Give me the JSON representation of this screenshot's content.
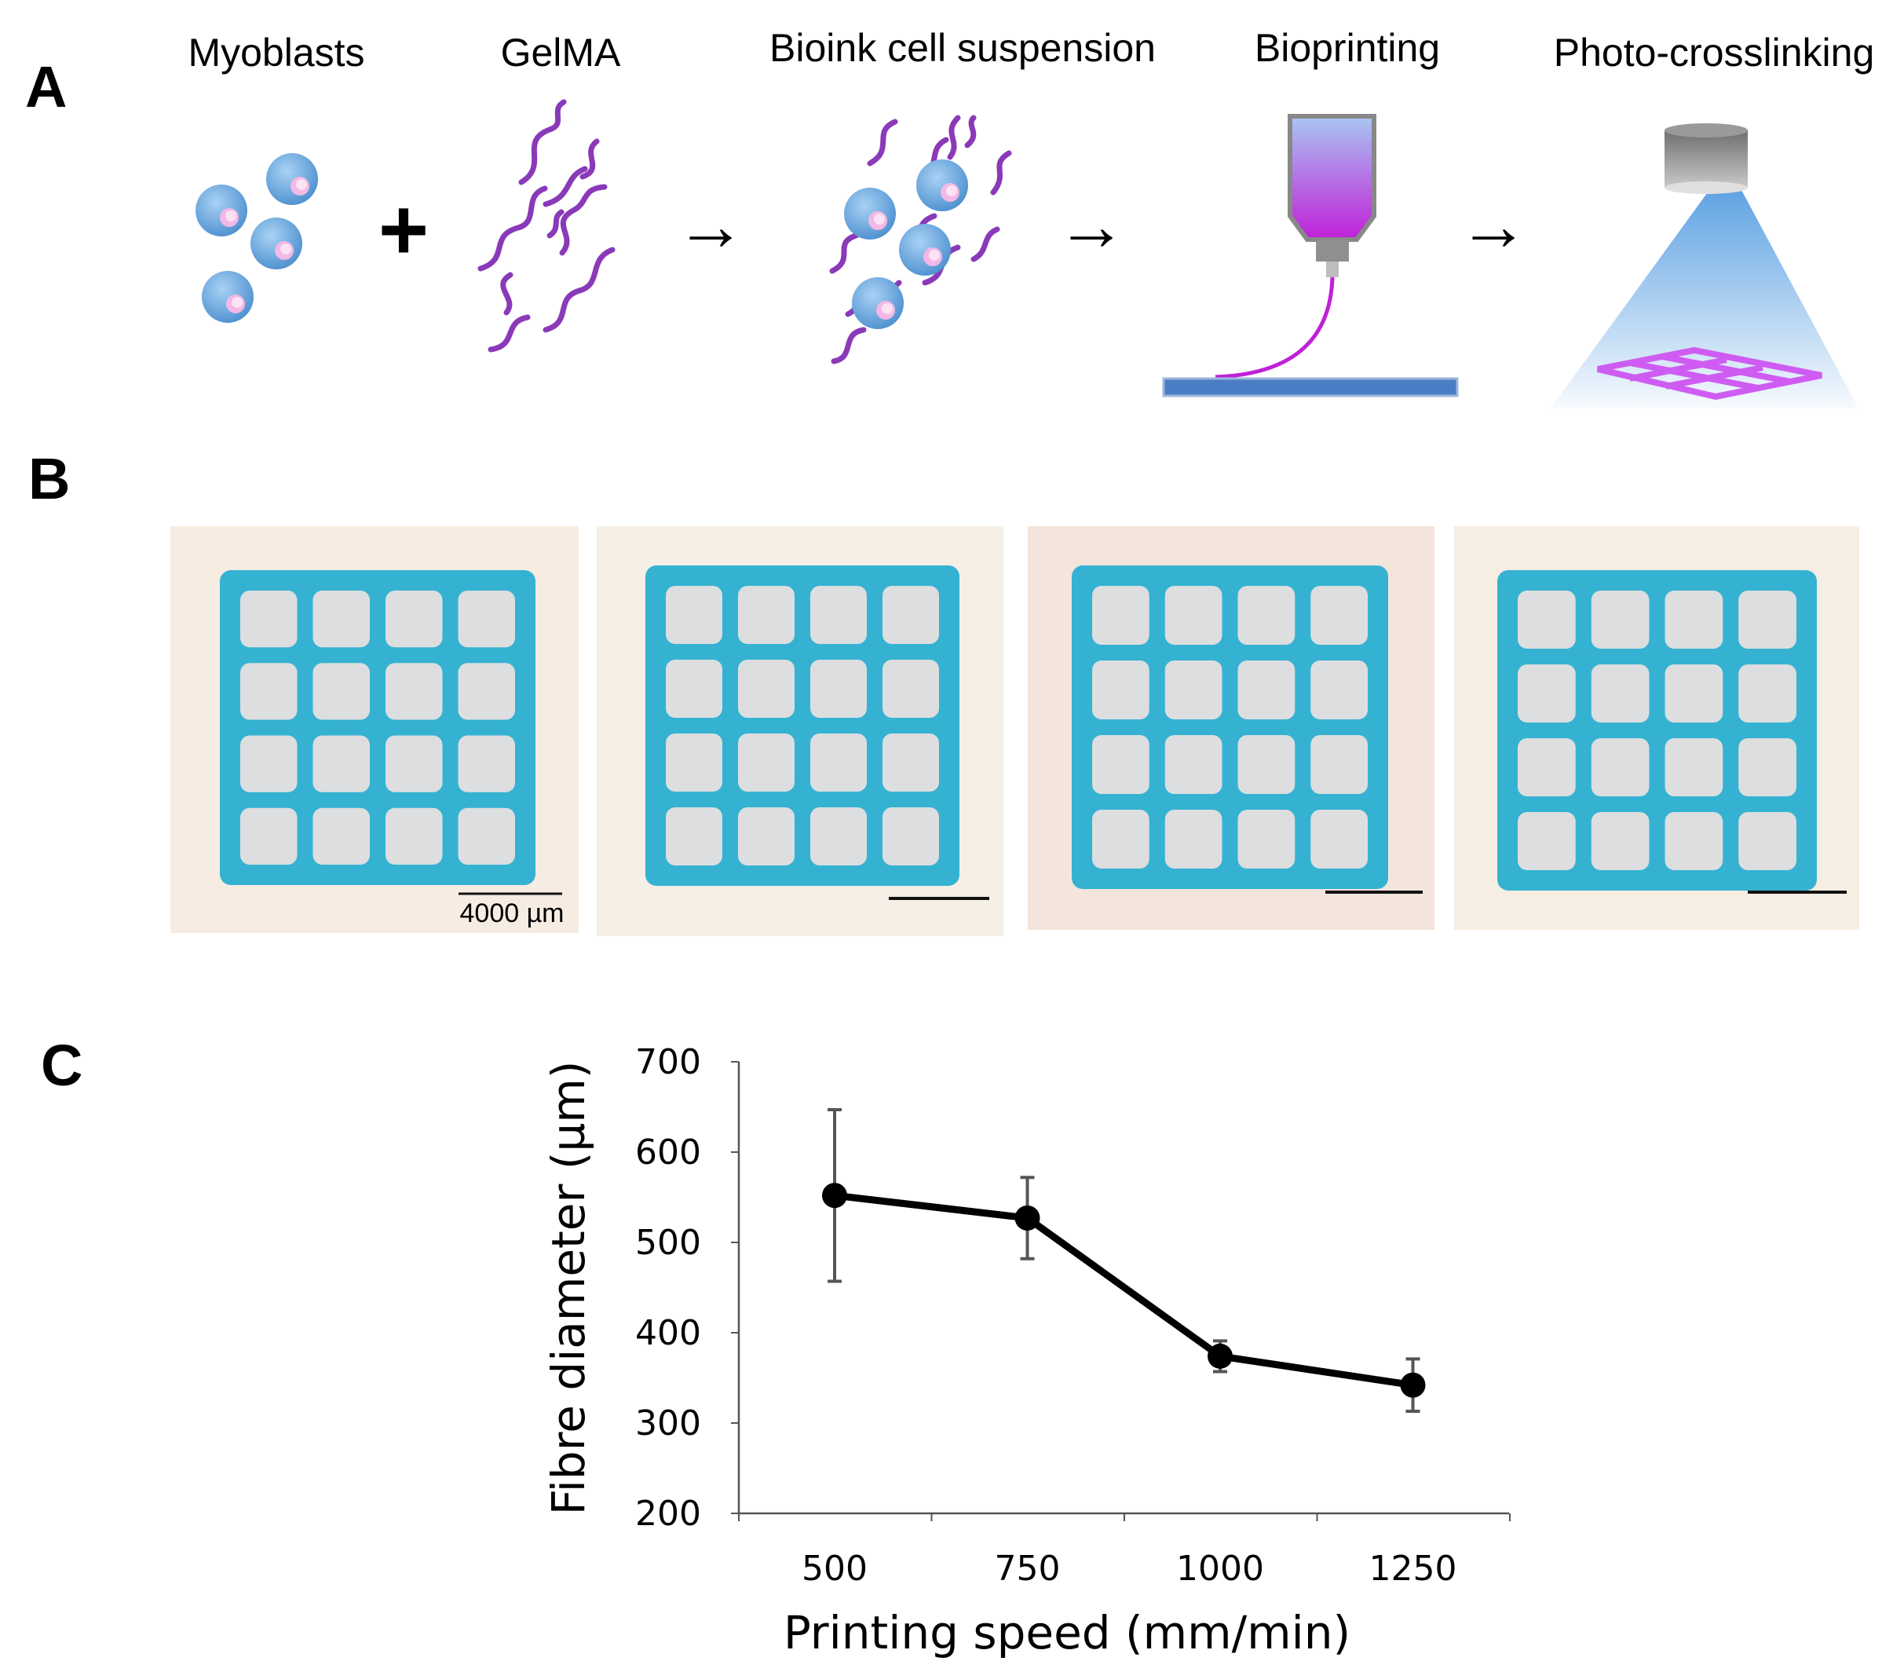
{
  "panels": {
    "a": "A",
    "b": "B",
    "c": "C"
  },
  "panel_a": {
    "steps": [
      "Myoblasts",
      "GelMA",
      "Bioink cell suspension",
      "Bioprinting",
      "Photo-crosslinking"
    ],
    "operators": [
      "+",
      "→",
      "→",
      "→"
    ],
    "colors": {
      "cell": "#5b9fd9",
      "nucleus": "#f2b8e6",
      "polymer": "#8a3ab8",
      "syringe_top": "#a9c6f2",
      "syringe_bottom": "#c020d8",
      "plate": "#4a7ec4",
      "light": "#5fa3e3",
      "grid": "#cf5cf2"
    }
  },
  "panel_b": {
    "scale_bar_label": "4000 µm",
    "photo_count": 4,
    "colors": {
      "scaffold": "#35b2d2",
      "pore": "#dcdee0",
      "paper": "#f5ece2"
    }
  },
  "chart_data": {
    "type": "line",
    "x": [
      500,
      750,
      1000,
      1250
    ],
    "y": [
      552,
      527,
      374,
      342
    ],
    "error": [
      95,
      45,
      17,
      29
    ],
    "xlabel": "Printing speed (mm/min)",
    "ylabel": "Fibre diameter (µm)",
    "ylim": [
      200,
      700
    ],
    "yticks": [
      200,
      300,
      400,
      500,
      600,
      700
    ],
    "xticks": [
      500,
      750,
      1000,
      1250
    ],
    "marker": "circle",
    "color": "#000000",
    "error_color": "#555555"
  }
}
